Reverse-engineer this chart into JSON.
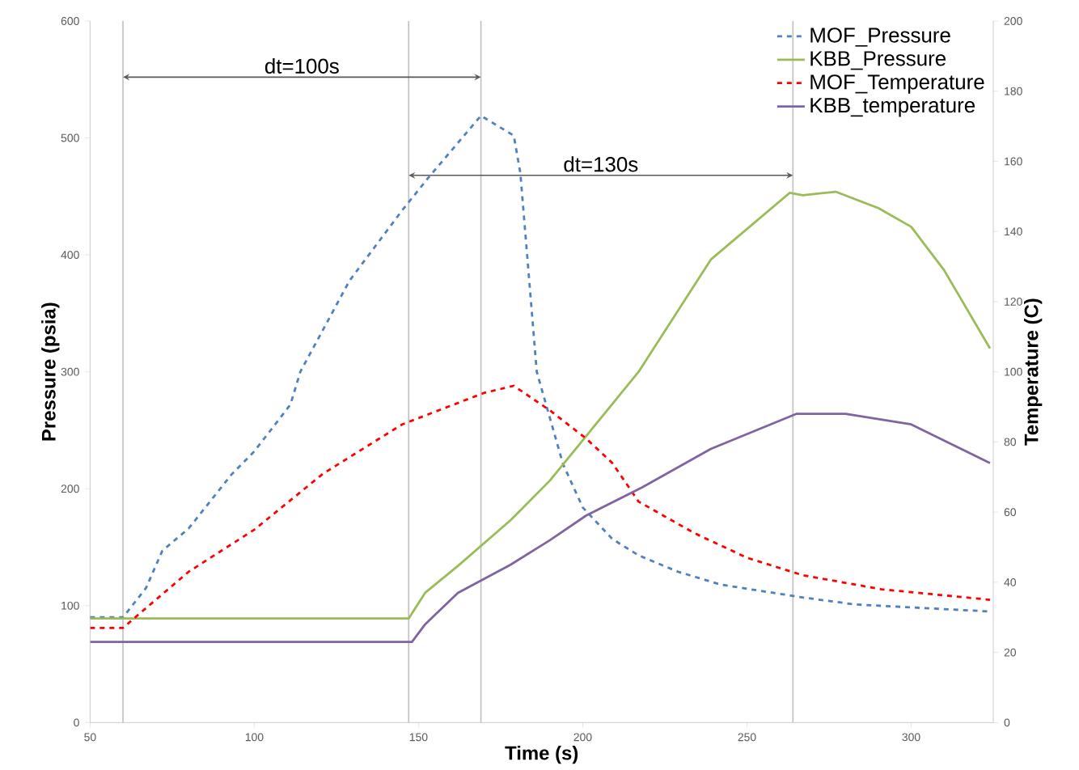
{
  "chart_data": {
    "type": "line",
    "xlabel": "Time (s)",
    "ylabel": "Pressure (psia)",
    "y2label": "Temperature (C)",
    "xlim": [
      50,
      325
    ],
    "xticks": [
      50,
      100,
      150,
      200,
      250,
      300
    ],
    "ylim": [
      0,
      600
    ],
    "yticks": [
      0,
      100,
      200,
      300,
      400,
      500,
      600
    ],
    "y2lim": [
      0,
      200
    ],
    "y2ticks": [
      0,
      20,
      40,
      60,
      80,
      100,
      120,
      140,
      160,
      180,
      200
    ],
    "legend": "top right",
    "series": [
      {
        "name": "MOF_Pressure",
        "color": "#4f81bd",
        "line_style": "dashed",
        "axis": "y",
        "x": [
          50,
          60,
          67,
          72,
          80,
          93,
          100,
          111,
          114,
          129,
          145,
          153,
          169,
          179,
          181,
          186,
          194,
          200,
          209,
          217,
          229,
          242,
          267,
          283,
          324
        ],
        "values": [
          90,
          90,
          115,
          147,
          166,
          212,
          232,
          272,
          300,
          378,
          438,
          466,
          519,
          502,
          470,
          300,
          221,
          184,
          157,
          143,
          129,
          118,
          107,
          101,
          95
        ]
      },
      {
        "name": "KBB_Pressure",
        "color": "#9bbb59",
        "line_style": "solid",
        "axis": "y",
        "x": [
          50,
          147,
          152,
          162,
          178,
          190,
          217,
          239,
          263,
          267,
          277,
          290,
          300,
          310,
          324
        ],
        "values": [
          89,
          89,
          111,
          134,
          173,
          207,
          300,
          396,
          453,
          451,
          454,
          440,
          424,
          387,
          320
        ]
      },
      {
        "name": "MOF_Temperature",
        "color": "#ff0000",
        "line_style": "dashed",
        "axis": "y2",
        "x": [
          50,
          60,
          65,
          80,
          100,
          121,
          145,
          170,
          179,
          190,
          201,
          209,
          217,
          234,
          250,
          267,
          291,
          324
        ],
        "values": [
          27,
          27,
          31,
          43,
          55,
          71,
          85,
          94,
          96,
          89,
          81,
          74,
          63,
          54,
          47,
          42,
          38,
          35
        ]
      },
      {
        "name": "KBB_temperature",
        "color": "#8064a2",
        "line_style": "solid",
        "axis": "y2",
        "x": [
          50,
          148,
          152,
          162,
          178,
          190,
          201,
          218,
          239,
          265,
          280,
          300,
          324
        ],
        "values": [
          23,
          23,
          28,
          37,
          45,
          52,
          59,
          67,
          78,
          88,
          88,
          85,
          74
        ]
      }
    ],
    "ref_lines": [
      {
        "axis": "x",
        "value": 60,
        "color": "#bfbfbf"
      },
      {
        "axis": "x",
        "value": 169,
        "color": "#bfbfbf"
      },
      {
        "axis": "x",
        "value": 147,
        "color": "#bfbfbf"
      },
      {
        "axis": "x",
        "value": 264,
        "color": "#bfbfbf"
      }
    ],
    "annotations": [
      "dt=100s",
      "dt=130s"
    ]
  }
}
